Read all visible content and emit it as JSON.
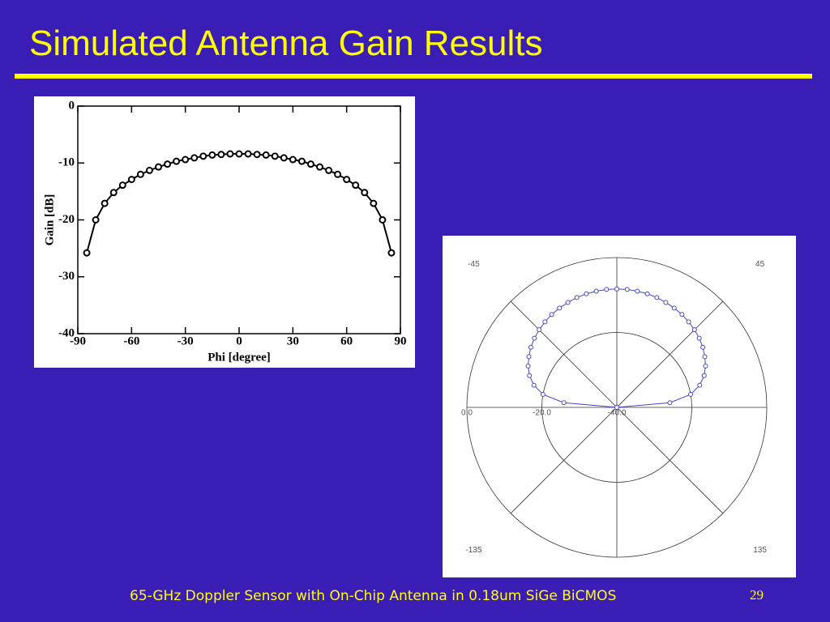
{
  "header": {
    "title": "Simulated Antenna Gain Results"
  },
  "footer": {
    "text": "65-GHz Doppler Sensor with On-Chip Antenna in 0.18um SiGe BiCMOS",
    "page": "29"
  },
  "chart_data": [
    {
      "type": "line",
      "xlabel": "Phi [degree]",
      "ylabel": "Gain [dB]",
      "color": "#000000",
      "x": [
        -85,
        -80,
        -75,
        -70,
        -65,
        -60,
        -55,
        -50,
        -45,
        -40,
        -35,
        -30,
        -25,
        -20,
        -15,
        -10,
        -5,
        0,
        5,
        10,
        15,
        20,
        25,
        30,
        35,
        40,
        45,
        50,
        55,
        60,
        65,
        70,
        75,
        80,
        85
      ],
      "values": [
        -25.8,
        -20.0,
        -17.1,
        -15.2,
        -13.9,
        -12.9,
        -12.0,
        -11.3,
        -10.7,
        -10.2,
        -9.7,
        -9.4,
        -9.1,
        -8.8,
        -8.6,
        -8.5,
        -8.4,
        -8.4,
        -8.4,
        -8.5,
        -8.6,
        -8.8,
        -9.1,
        -9.4,
        -9.7,
        -10.2,
        -10.7,
        -11.3,
        -12.0,
        -12.9,
        -13.9,
        -15.2,
        -17.1,
        -20.0,
        -25.8
      ],
      "xlim": [
        -90,
        90
      ],
      "xticks": [
        -90,
        -60,
        -30,
        0,
        30,
        60,
        90
      ],
      "ylim": [
        -40,
        0
      ],
      "yticks": [
        0,
        -10,
        -20,
        -30,
        -40
      ]
    },
    {
      "type": "polar",
      "color": "#4646c8",
      "theta": [
        -90,
        -85,
        -80,
        -75,
        -70,
        -65,
        -60,
        -55,
        -50,
        -45,
        -40,
        -35,
        -30,
        -25,
        -20,
        -15,
        -10,
        -5,
        0,
        5,
        10,
        15,
        20,
        25,
        30,
        35,
        40,
        45,
        50,
        55,
        60,
        65,
        70,
        75,
        80,
        85,
        90
      ],
      "values": [
        -40,
        -25.8,
        -20.0,
        -17.1,
        -15.2,
        -13.9,
        -12.9,
        -12.0,
        -11.3,
        -10.7,
        -10.2,
        -9.7,
        -9.4,
        -9.1,
        -8.8,
        -8.6,
        -8.5,
        -8.4,
        -8.4,
        -8.4,
        -8.5,
        -8.6,
        -8.8,
        -9.1,
        -9.4,
        -9.7,
        -10.2,
        -10.7,
        -11.3,
        -12.0,
        -12.9,
        -13.9,
        -15.2,
        -17.1,
        -20.0,
        -25.8,
        -40
      ],
      "rlim": [
        -40,
        0
      ],
      "rticks": [
        {
          "value": 0,
          "label": "0.0"
        },
        {
          "value": -20,
          "label": "-20.0"
        },
        {
          "value": -40,
          "label": "-40.0"
        }
      ],
      "thetaticks": [
        -45,
        45,
        -135,
        135
      ]
    }
  ]
}
